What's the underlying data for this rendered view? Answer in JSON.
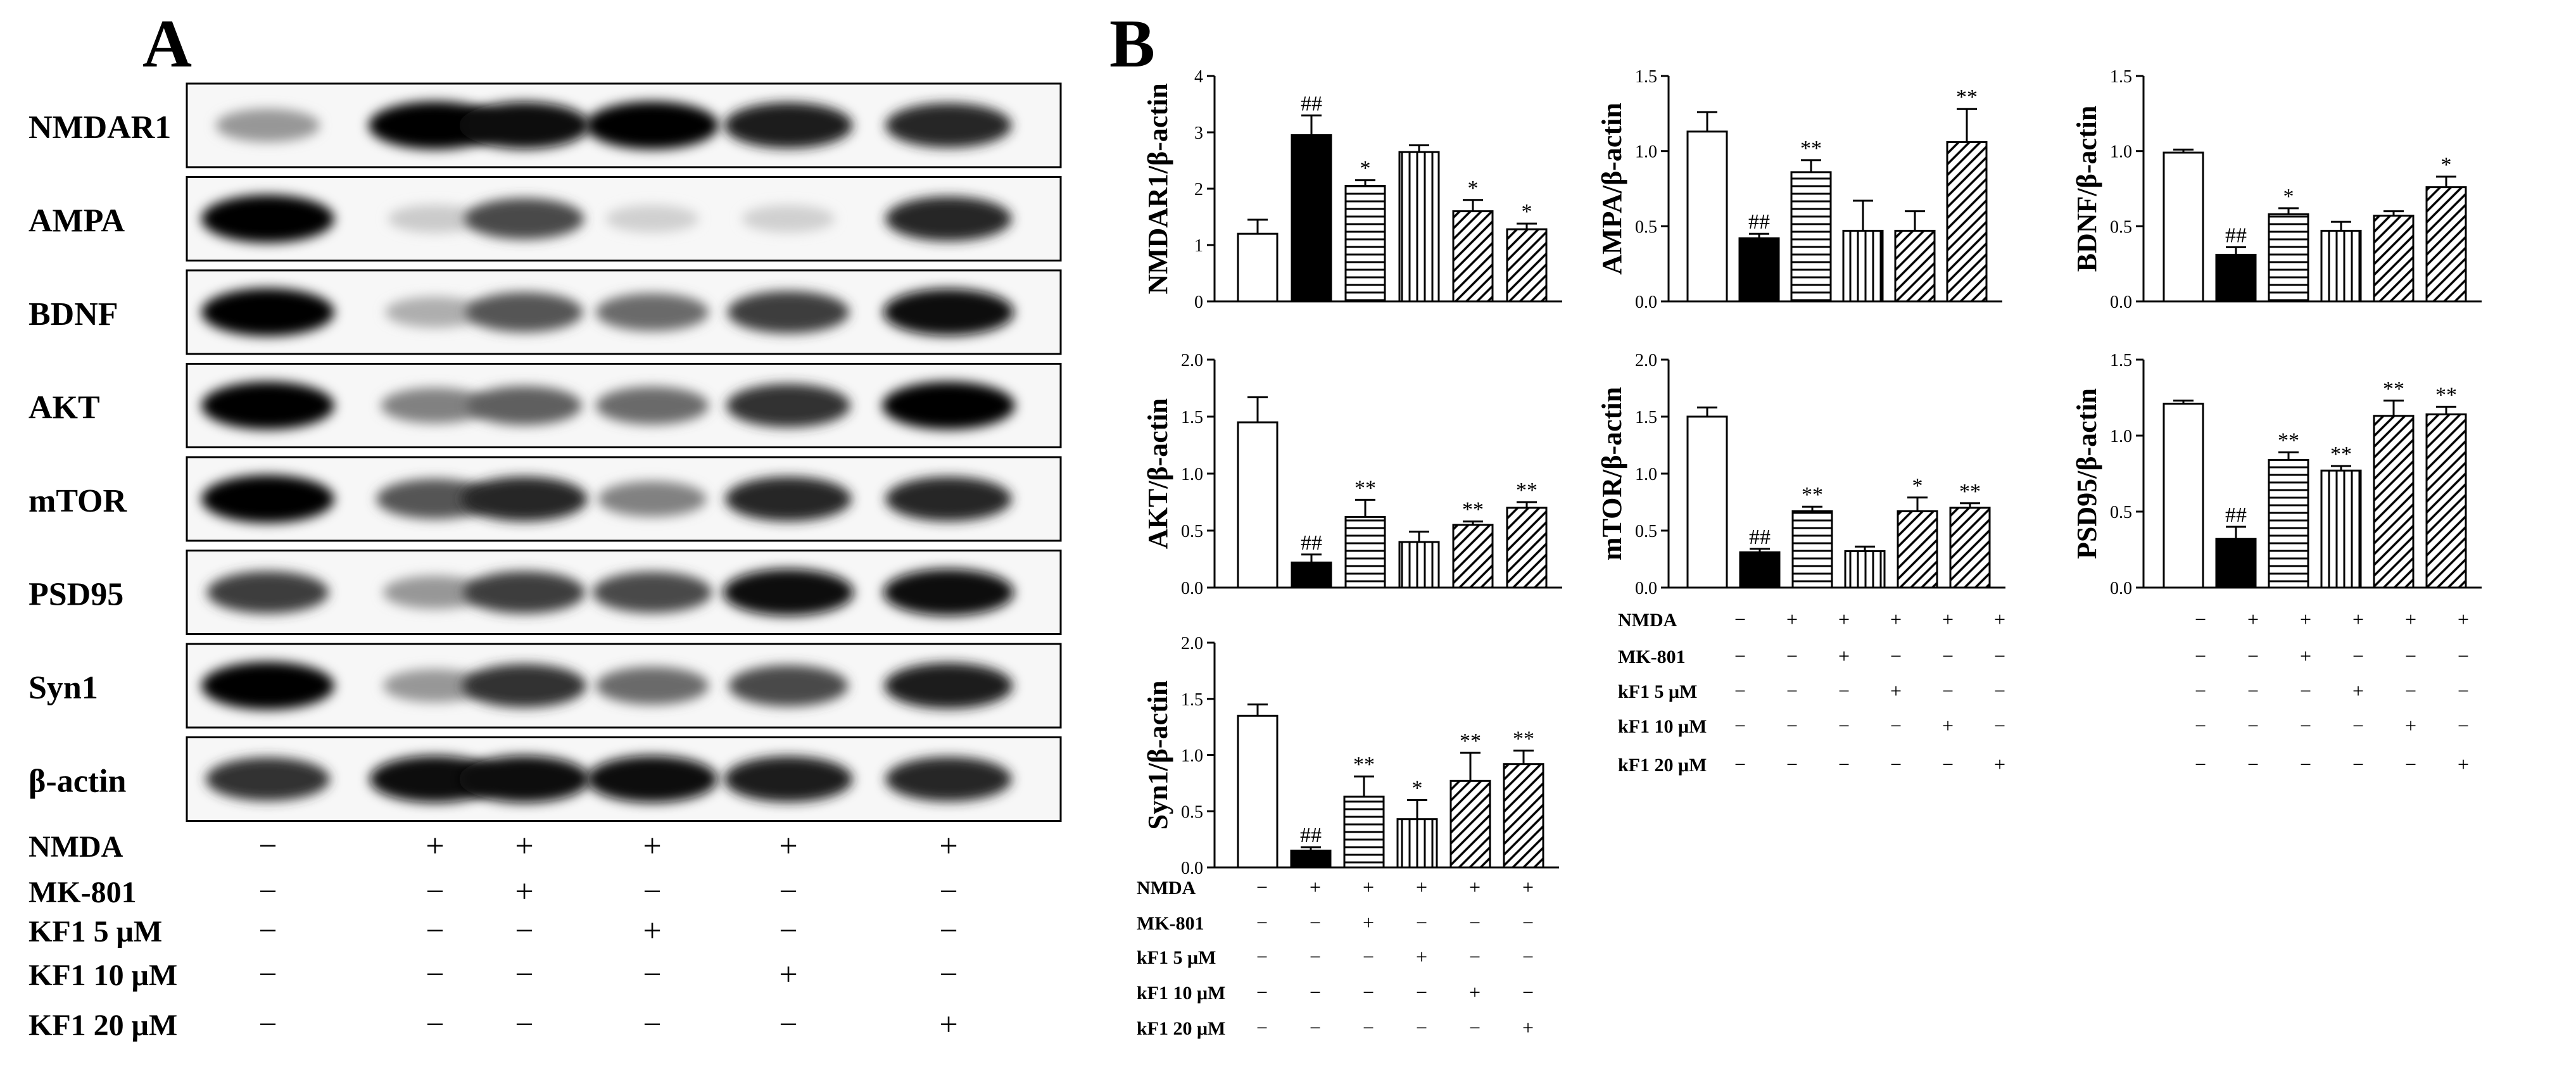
{
  "panel_a": {
    "letter": "A",
    "blots": [
      "NMDAR1",
      "AMPA",
      "BDNF",
      "AKT",
      "mTOR",
      "PSD95",
      "Syn1",
      "β-actin"
    ],
    "band_intensity": [
      [
        0.35,
        1.0,
        0.95,
        1.0,
        0.9,
        0.85
      ],
      [
        1.0,
        0.12,
        0.7,
        0.1,
        0.1,
        0.85
      ],
      [
        1.0,
        0.25,
        0.65,
        0.55,
        0.75,
        0.95
      ],
      [
        1.0,
        0.45,
        0.6,
        0.55,
        0.8,
        1.0
      ],
      [
        1.0,
        0.65,
        0.85,
        0.45,
        0.85,
        0.85
      ],
      [
        0.75,
        0.35,
        0.75,
        0.7,
        0.95,
        0.95
      ],
      [
        1.0,
        0.35,
        0.8,
        0.55,
        0.7,
        0.9
      ],
      [
        0.8,
        0.95,
        0.95,
        0.95,
        0.9,
        0.85
      ]
    ],
    "treatments": [
      {
        "name": "NMDA",
        "signs": [
          "−",
          "+",
          "+",
          "+",
          "+",
          "+"
        ]
      },
      {
        "name": "MK-801",
        "signs": [
          "−",
          "−",
          "+",
          "−",
          "−",
          "−"
        ]
      },
      {
        "name": "KF1 5 μM",
        "signs": [
          "−",
          "−",
          "−",
          "+",
          "−",
          "−"
        ]
      },
      {
        "name": "KF1 10 μM",
        "signs": [
          "−",
          "−",
          "−",
          "−",
          "+",
          "−"
        ]
      },
      {
        "name": "KF1 20 μM",
        "signs": [
          "−",
          "−",
          "−",
          "−",
          "−",
          "+"
        ]
      }
    ]
  },
  "panel_b": {
    "letter": "B",
    "bar_fills": [
      "white",
      "black",
      "hlines",
      "vlines",
      "diag",
      "diag"
    ],
    "treatments_small": [
      {
        "name": "NMDA",
        "signs": [
          "−",
          "+",
          "+",
          "+",
          "+",
          "+"
        ]
      },
      {
        "name": "MK-801",
        "signs": [
          "−",
          "−",
          "+",
          "−",
          "−",
          "−"
        ]
      },
      {
        "name": "kF1 5 μM",
        "signs": [
          "−",
          "−",
          "−",
          "+",
          "−",
          "−"
        ]
      },
      {
        "name": "kF1 10 μM",
        "signs": [
          "−",
          "−",
          "−",
          "−",
          "+",
          "−"
        ]
      },
      {
        "name": "kF1 20 μM",
        "signs": [
          "−",
          "−",
          "−",
          "−",
          "−",
          "+"
        ]
      }
    ]
  },
  "chart_data": [
    {
      "type": "bar",
      "ylabel": "NMDAR1/β-actin",
      "ylim": [
        0,
        4
      ],
      "yticks": [
        "0",
        "1",
        "2",
        "3",
        "4"
      ],
      "values": [
        1.2,
        2.95,
        2.05,
        2.65,
        1.6,
        1.28
      ],
      "errors": [
        0.25,
        0.35,
        0.1,
        0.12,
        0.2,
        0.1
      ],
      "annotations": [
        "",
        "##",
        "*",
        "",
        "*",
        "*"
      ]
    },
    {
      "type": "bar",
      "ylabel": "AMPA/β-actin",
      "ylim": [
        0,
        1.5
      ],
      "yticks": [
        "0.0",
        "0.5",
        "1.0",
        "1.5"
      ],
      "values": [
        1.13,
        0.42,
        0.86,
        0.47,
        0.47,
        1.06
      ],
      "errors": [
        0.13,
        0.03,
        0.08,
        0.2,
        0.13,
        0.22
      ],
      "annotations": [
        "",
        "##",
        "**",
        "",
        "",
        "**"
      ]
    },
    {
      "type": "bar",
      "ylabel": "BDNF/β-actin",
      "ylim": [
        0,
        1.5
      ],
      "yticks": [
        "0.0",
        "0.5",
        "1.0",
        "1.5"
      ],
      "values": [
        0.99,
        0.31,
        0.58,
        0.47,
        0.57,
        0.76
      ],
      "errors": [
        0.02,
        0.05,
        0.04,
        0.06,
        0.03,
        0.07
      ],
      "annotations": [
        "",
        "##",
        "*",
        "",
        "",
        "*"
      ]
    },
    {
      "type": "bar",
      "ylabel": "AKT/β-actin",
      "ylim": [
        0,
        2.0
      ],
      "yticks": [
        "0.0",
        "0.5",
        "1.0",
        "1.5",
        "2.0"
      ],
      "values": [
        1.45,
        0.22,
        0.62,
        0.4,
        0.55,
        0.7
      ],
      "errors": [
        0.22,
        0.07,
        0.15,
        0.09,
        0.03,
        0.05
      ],
      "annotations": [
        "",
        "##",
        "**",
        "",
        "**",
        "**"
      ]
    },
    {
      "type": "bar",
      "ylabel": "mTOR/β-actin",
      "ylim": [
        0,
        2.0
      ],
      "yticks": [
        "0.0",
        "0.5",
        "1.0",
        "1.5",
        "2.0"
      ],
      "values": [
        1.5,
        0.31,
        0.67,
        0.32,
        0.67,
        0.7
      ],
      "errors": [
        0.08,
        0.03,
        0.04,
        0.04,
        0.12,
        0.04
      ],
      "annotations": [
        "",
        "##",
        "**",
        "",
        "*",
        "**"
      ]
    },
    {
      "type": "bar",
      "ylabel": "PSD95/β-actin",
      "ylim": [
        0,
        1.5
      ],
      "yticks": [
        "0.0",
        "0.5",
        "1.0",
        "1.5"
      ],
      "values": [
        1.21,
        0.32,
        0.84,
        0.77,
        1.13,
        1.14
      ],
      "errors": [
        0.02,
        0.08,
        0.05,
        0.03,
        0.1,
        0.05
      ],
      "annotations": [
        "",
        "##",
        "**",
        "**",
        "**",
        "**"
      ]
    },
    {
      "type": "bar",
      "ylabel": "Syn1/β-actin",
      "ylim": [
        0,
        2.0
      ],
      "yticks": [
        "0.0",
        "0.5",
        "1.0",
        "1.5",
        "2.0"
      ],
      "values": [
        1.35,
        0.15,
        0.63,
        0.43,
        0.77,
        0.92
      ],
      "errors": [
        0.1,
        0.03,
        0.18,
        0.17,
        0.25,
        0.12
      ],
      "annotations": [
        "",
        "##",
        "**",
        "*",
        "**",
        "**"
      ]
    }
  ]
}
